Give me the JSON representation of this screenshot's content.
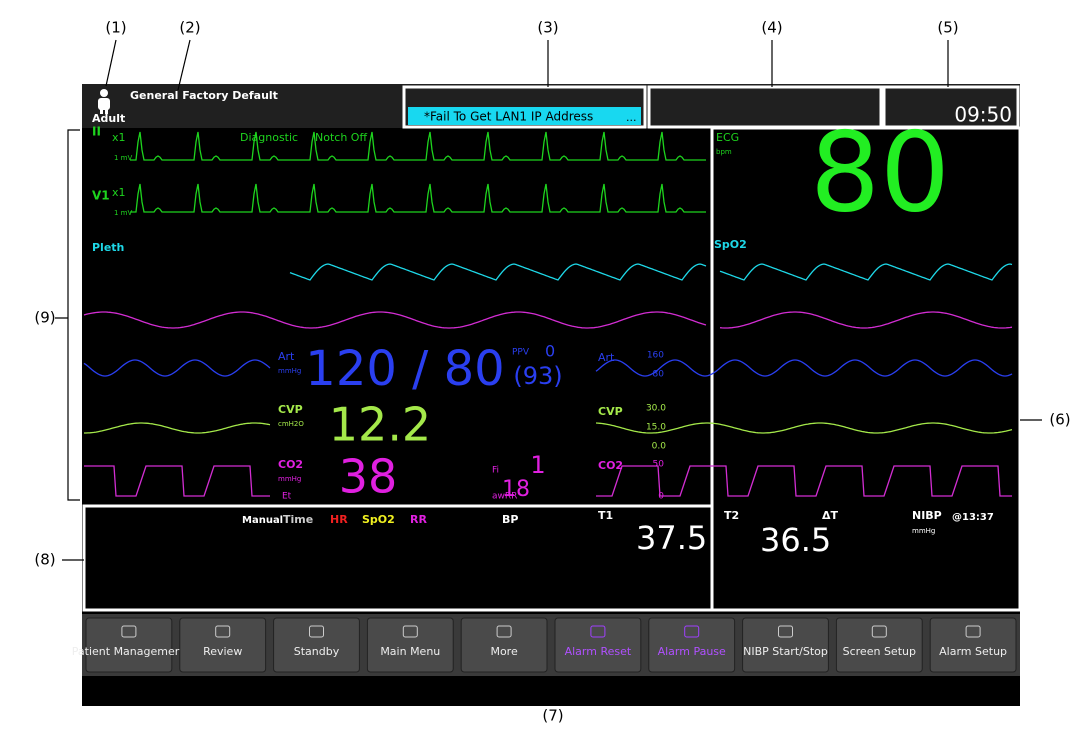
{
  "callouts": [
    "(1)",
    "(2)",
    "(3)",
    "(4)",
    "(5)",
    "(6)",
    "(7)",
    "(8)",
    "(9)"
  ],
  "header": {
    "patient_type": "Adult",
    "config": "General Factory Default",
    "alarm_message": "*Fail To Get LAN1 IP Address",
    "more": "...",
    "time": "09:50"
  },
  "waveforms": [
    {
      "label": "II",
      "gain": "x1",
      "scale": "1 mV",
      "filter": "Diagnostic",
      "notch": "Notch Off"
    },
    {
      "label": "V1",
      "gain": "x1",
      "scale": "1 mV"
    },
    {
      "label": "Pleth"
    }
  ],
  "params": {
    "ecg": {
      "label": "ECG",
      "unit": "bpm",
      "value": "80"
    },
    "spo2": {
      "label": "SpO2"
    },
    "art": {
      "label": "Art",
      "unit": "mmHg",
      "value": "120 / 80",
      "ppv_label": "PPV",
      "ppv": "0",
      "ppv_sub": "(93)",
      "scale": [
        "160",
        "80"
      ]
    },
    "cvp": {
      "label": "CVP",
      "unit": "cmH2O",
      "value": "12.2",
      "scale": [
        "30.0",
        "15.0",
        "0.0"
      ]
    },
    "co2": {
      "label": "CO2",
      "unit": "mmHg",
      "value": "38",
      "et": "Et",
      "fi_label": "Fi",
      "fi": "1",
      "awrr_label": "awRR",
      "awrr": "18",
      "scale": [
        "50",
        "0"
      ]
    }
  },
  "tiles": {
    "mode": "Manual",
    "time": "Time",
    "hr": "HR",
    "spo2": "SpO2",
    "rr": "RR",
    "bp": "BP",
    "t1": "T1",
    "t1_value": "37.5",
    "t2": "T2",
    "t2_value": "36.5",
    "delta_t": "ΔT",
    "nibp": "NIBP",
    "nibp_unit": "mmHg",
    "nibp_time": "@13:37"
  },
  "buttons": [
    "Patient Management",
    "Review",
    "Standby",
    "Main Menu",
    "More",
    "Alarm Reset",
    "Alarm Pause",
    "NIBP Start/Stop",
    "Screen Setup",
    "Alarm Setup"
  ]
}
